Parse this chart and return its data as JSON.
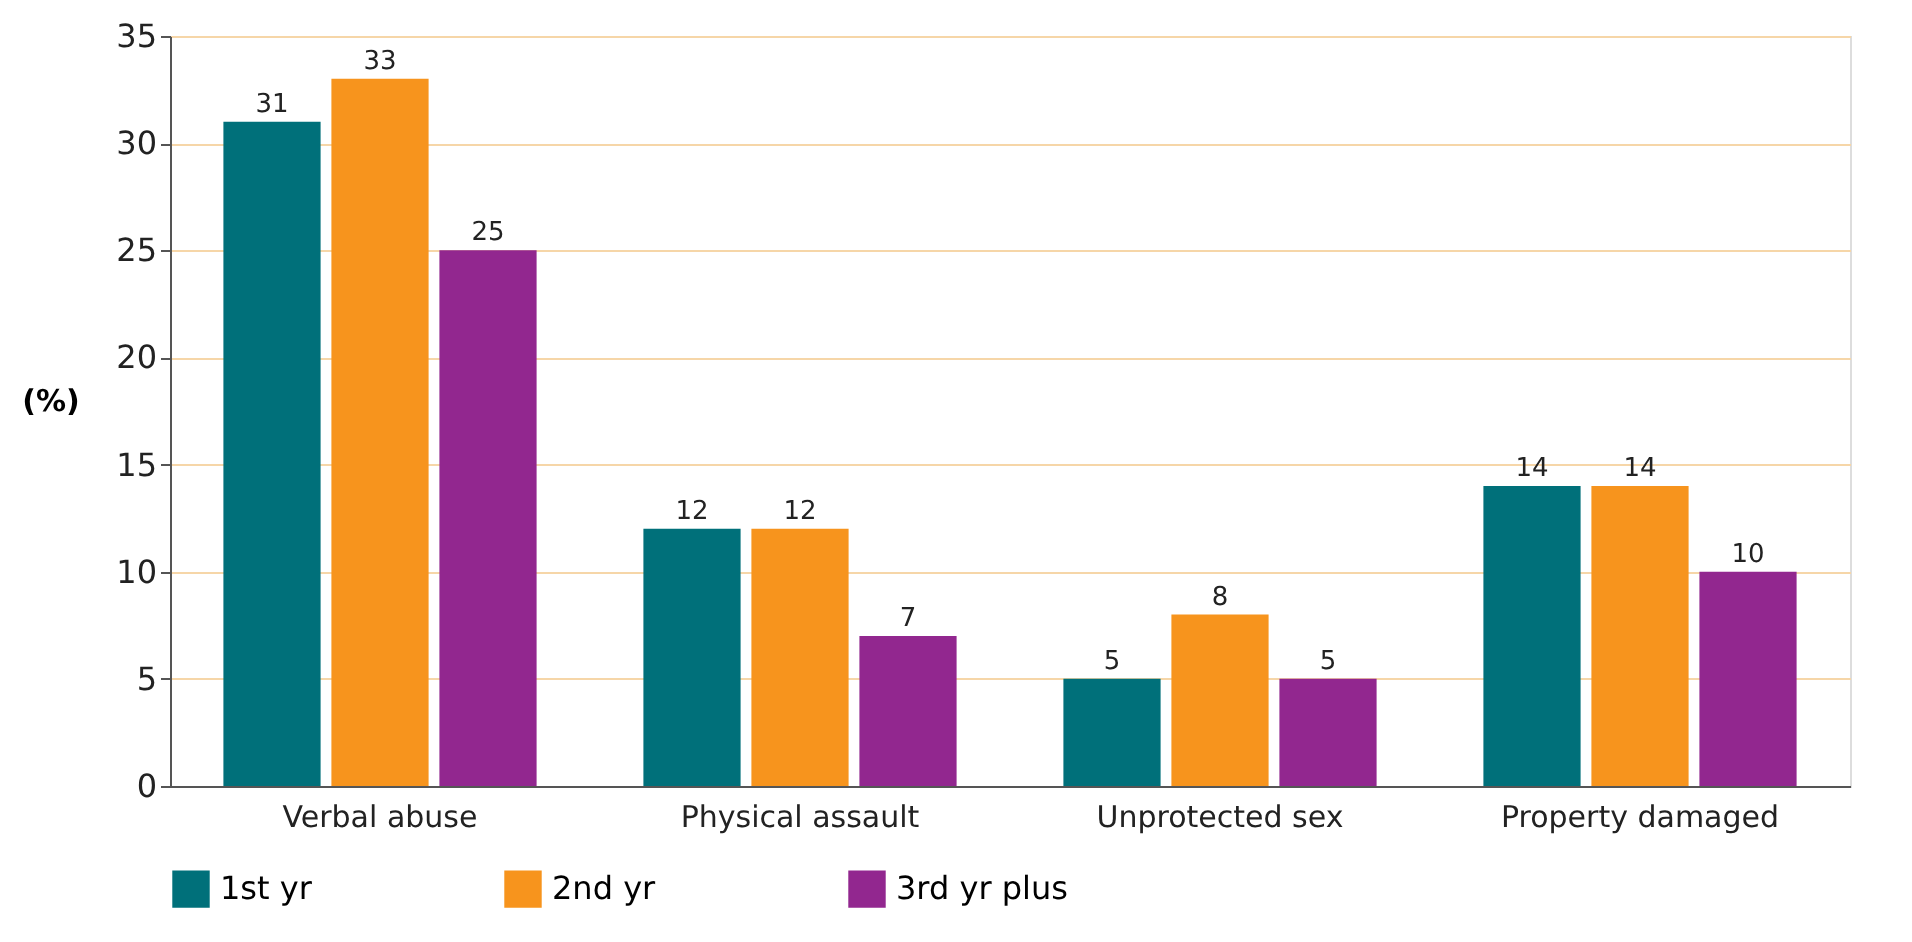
{
  "chart_data": {
    "type": "bar",
    "ylabel": "(%)",
    "categories": [
      "Verbal abuse",
      "Physical assault",
      "Unprotected sex",
      "Property damaged"
    ],
    "series": [
      {
        "name": "1st yr",
        "color": "#00707a",
        "values": [
          31,
          12,
          5,
          14
        ]
      },
      {
        "name": "2nd yr",
        "color": "#f7941d",
        "values": [
          33,
          12,
          8,
          14
        ]
      },
      {
        "name": "3rd yr plus",
        "color": "#92278f",
        "values": [
          25,
          7,
          5,
          10
        ]
      }
    ],
    "ylim": [
      0,
      35
    ],
    "yticks": [
      0,
      5,
      10,
      15,
      20,
      25,
      30,
      35
    ],
    "grid": "y",
    "legend": "bottom",
    "data_labels": true
  }
}
